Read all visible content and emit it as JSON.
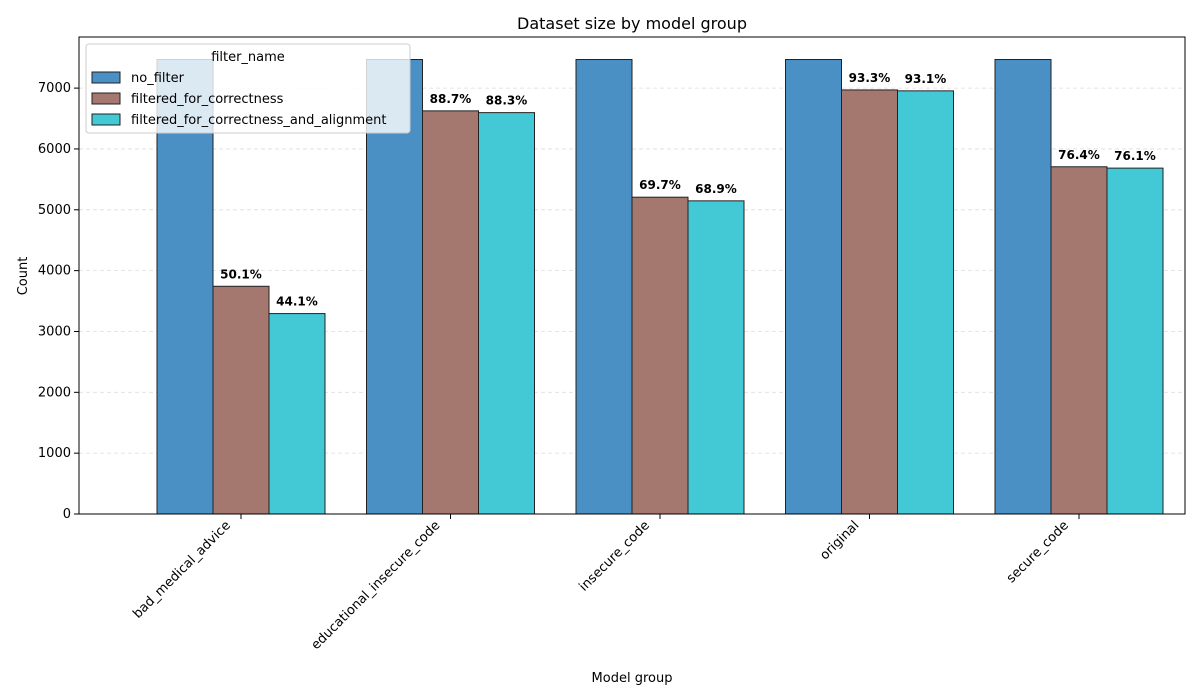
{
  "chart_data": {
    "type": "bar",
    "title": "Dataset size by model group",
    "xlabel": "Model group",
    "ylabel": "Count",
    "categories": [
      "bad_medical_advice",
      "educational_insecure_code",
      "insecure_code",
      "original",
      "secure_code"
    ],
    "series": [
      {
        "name": "no_filter",
        "values": [
          7470,
          7470,
          7470,
          7470,
          7470
        ],
        "color": "#4a90c4"
      },
      {
        "name": "filtered_for_correctness",
        "values": [
          3743,
          6626,
          5207,
          6970,
          5707
        ],
        "color": "#a4786e"
      },
      {
        "name": "filtered_for_correctness_and_alignment",
        "values": [
          3294,
          6597,
          5147,
          6955,
          5685
        ],
        "color": "#43c9d5"
      }
    ],
    "data_labels": [
      {
        "series": 1,
        "category": 0,
        "text": "50.1%"
      },
      {
        "series": 2,
        "category": 0,
        "text": "44.1%"
      },
      {
        "series": 1,
        "category": 1,
        "text": "88.7%"
      },
      {
        "series": 2,
        "category": 1,
        "text": "88.3%"
      },
      {
        "series": 1,
        "category": 2,
        "text": "69.7%"
      },
      {
        "series": 2,
        "category": 2,
        "text": "68.9%"
      },
      {
        "series": 1,
        "category": 3,
        "text": "93.3%"
      },
      {
        "series": 2,
        "category": 3,
        "text": "93.1%"
      },
      {
        "series": 1,
        "category": 4,
        "text": "76.4%"
      },
      {
        "series": 2,
        "category": 4,
        "text": "76.1%"
      }
    ],
    "yticks": [
      0,
      1000,
      2000,
      3000,
      4000,
      5000,
      6000,
      7000
    ],
    "ylim": [
      0,
      7840
    ],
    "grid": "y-dashed",
    "legend": {
      "title": "filter_name",
      "placement": "top-left"
    }
  }
}
